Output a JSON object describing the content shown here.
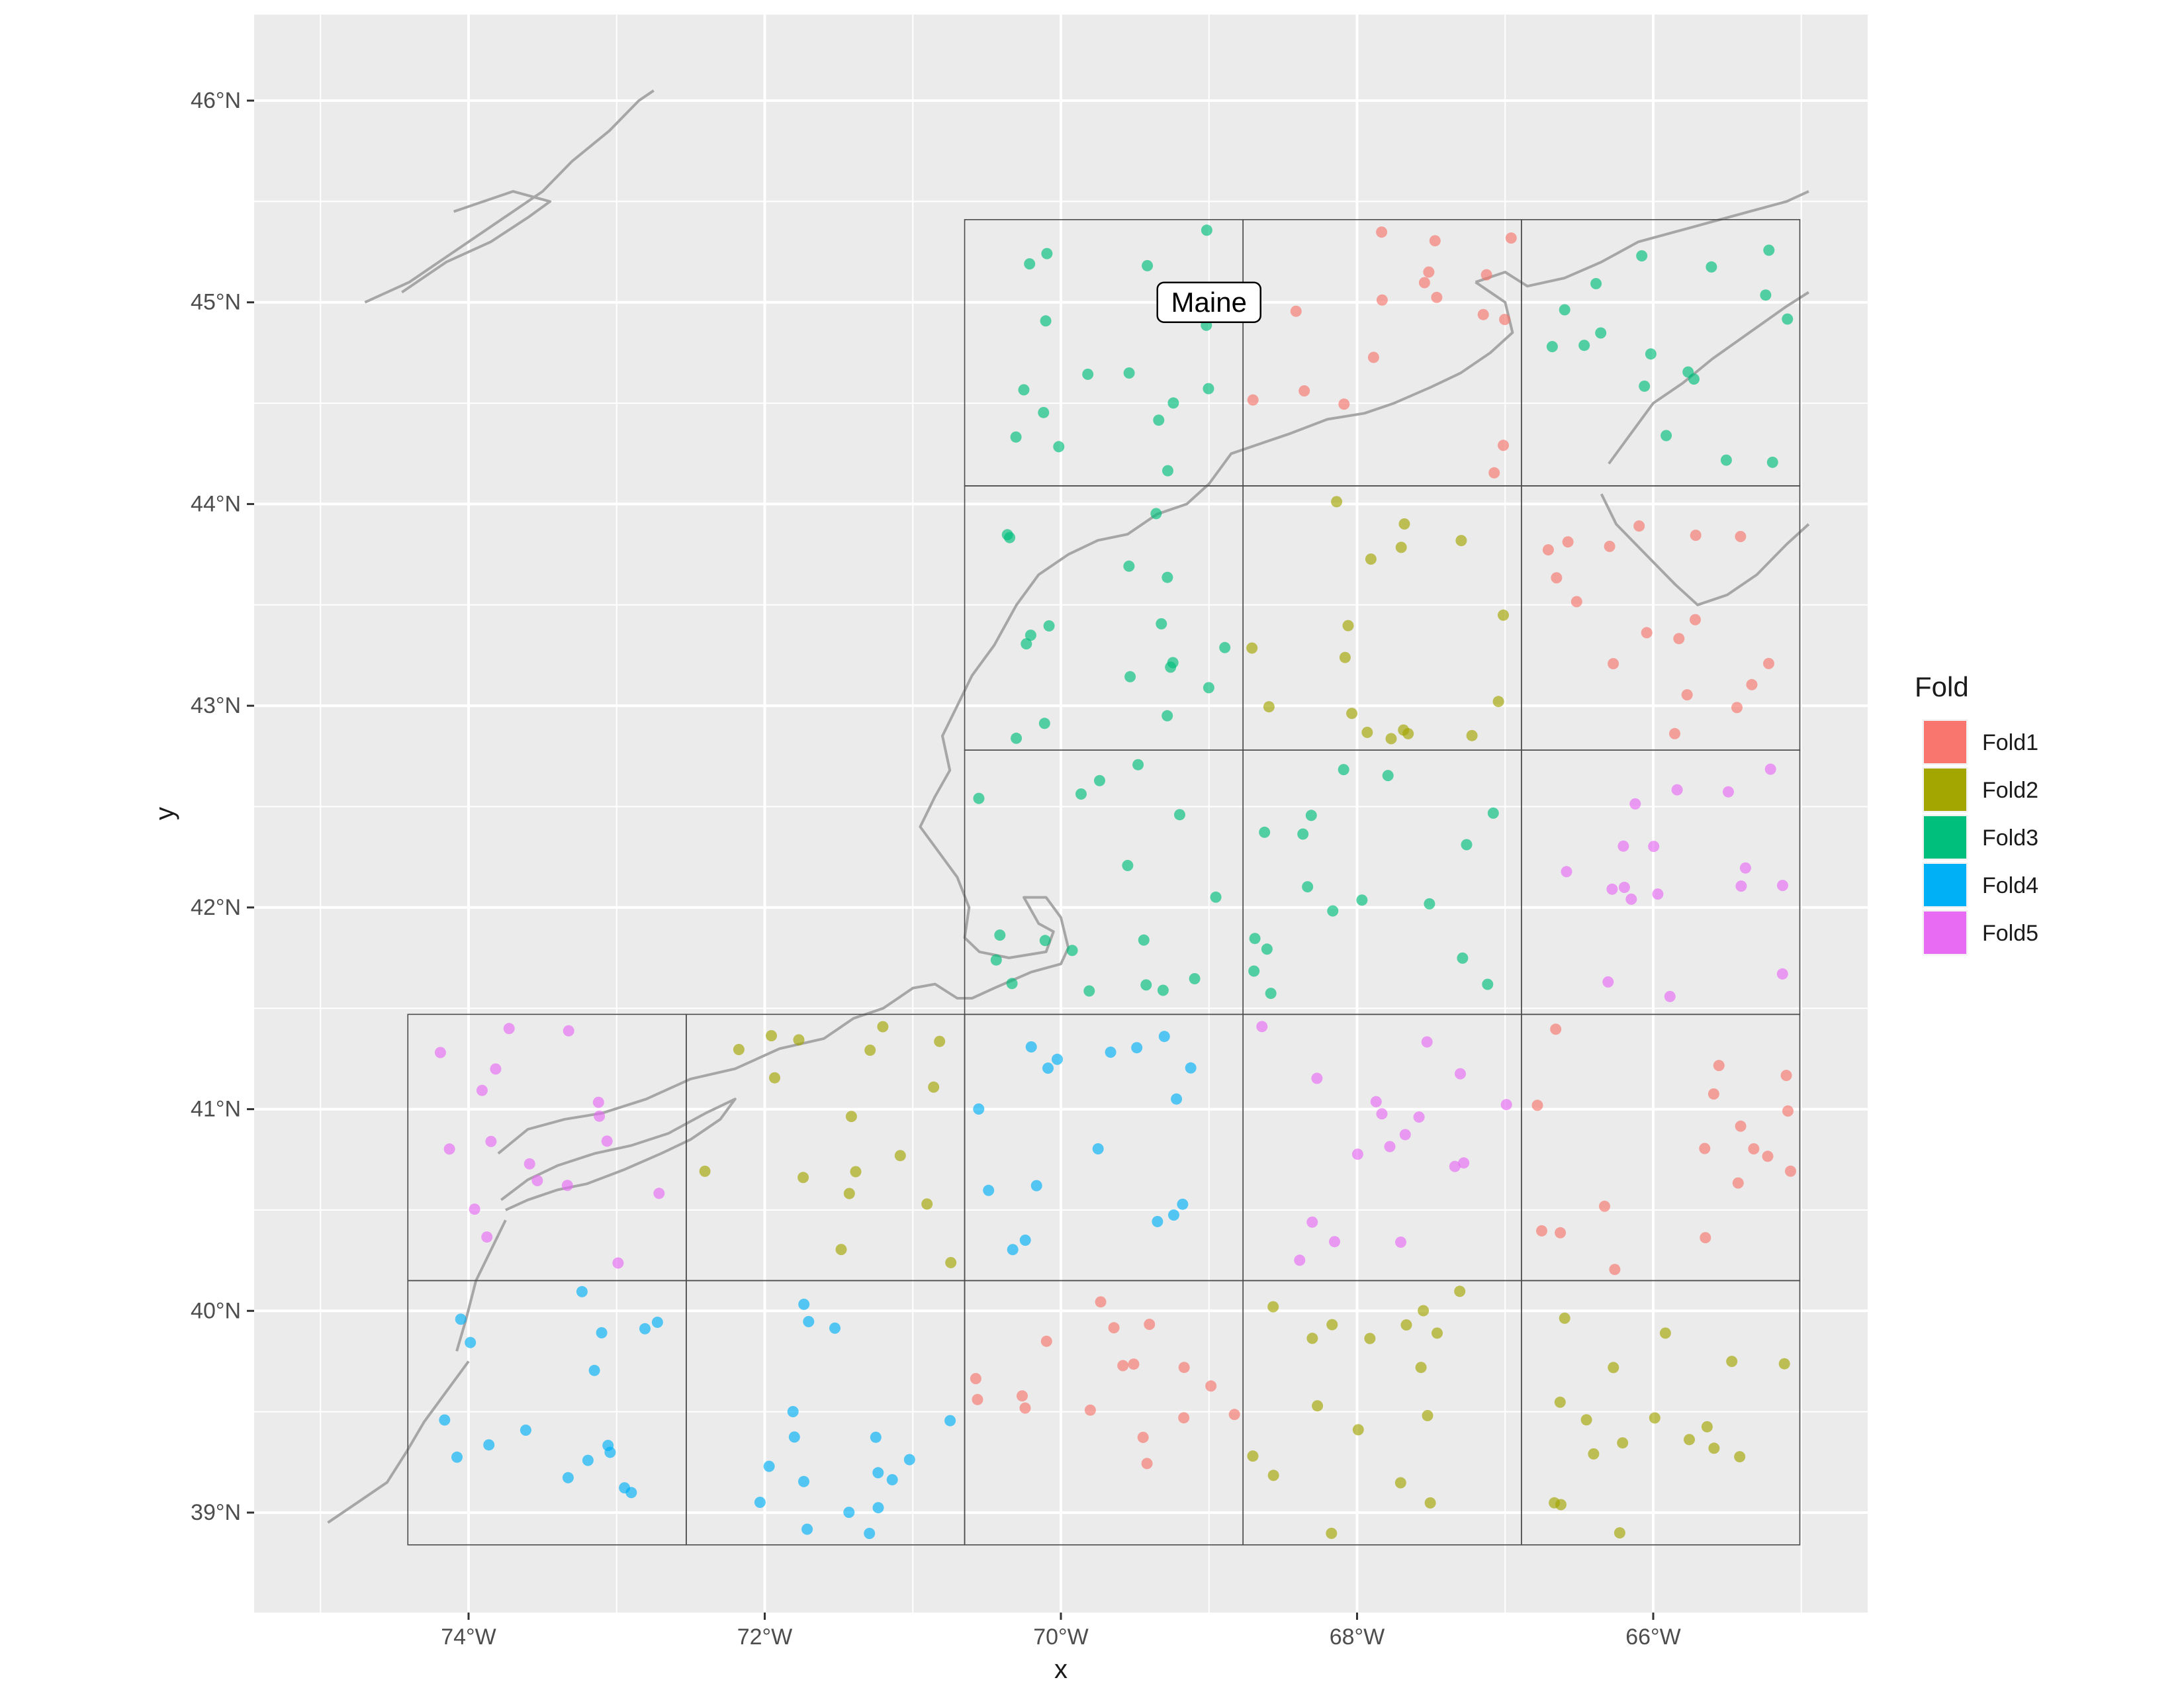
{
  "chart_data": {
    "type": "scatter",
    "map": "spatial cross-validation folds",
    "xlabel": "x",
    "ylabel": "y",
    "xlim": [
      -75.4,
      -64.5
    ],
    "ylim": [
      38.45,
      46.4
    ],
    "x_ticks": [
      -74,
      -72,
      -70,
      -68,
      -66
    ],
    "x_tick_labels": [
      "74°W",
      "72°W",
      "70°W",
      "68°W",
      "66°W"
    ],
    "y_ticks": [
      39,
      40,
      41,
      42,
      43,
      44,
      45,
      46
    ],
    "y_tick_labels": [
      "39°N",
      "40°N",
      "41°N",
      "42°N",
      "43°N",
      "44°N",
      "45°N",
      "46°N"
    ],
    "annotation": {
      "text": "Maine",
      "x": -69.0,
      "y": 45.0
    },
    "legend": {
      "title": "Fold",
      "position": "right"
    },
    "series": [
      {
        "name": "Fold1",
        "color": "#F8766D"
      },
      {
        "name": "Fold2",
        "color": "#A3A500"
      },
      {
        "name": "Fold3",
        "color": "#00BF7D"
      },
      {
        "name": "Fold4",
        "color": "#00B0F6"
      },
      {
        "name": "Fold5",
        "color": "#E76BF3"
      }
    ],
    "grid_x": [
      -74.41,
      -72.53,
      -70.65,
      -68.77,
      -66.89,
      -65.01
    ],
    "grid_y": [
      38.84,
      40.15,
      41.47,
      42.78,
      44.09,
      45.41
    ],
    "grid_blocks": [
      [
        0,
        0,
        4
      ],
      [
        1,
        0,
        4
      ],
      [
        2,
        0,
        1
      ],
      [
        3,
        0,
        2
      ],
      [
        4,
        0,
        2
      ],
      [
        0,
        1,
        5
      ],
      [
        1,
        1,
        2
      ],
      [
        2,
        1,
        4
      ],
      [
        3,
        1,
        5
      ],
      [
        4,
        1,
        1
      ],
      [
        2,
        2,
        3
      ],
      [
        3,
        2,
        3
      ],
      [
        4,
        2,
        5
      ],
      [
        2,
        3,
        3
      ],
      [
        3,
        3,
        2
      ],
      [
        4,
        3,
        1
      ],
      [
        2,
        4,
        3
      ],
      [
        3,
        4,
        1
      ],
      [
        4,
        4,
        3
      ]
    ],
    "points_per_block": 17,
    "coastline": [
      [
        [
          -74.0,
          39.75
        ],
        [
          -74.15,
          39.6
        ],
        [
          -74.3,
          39.45
        ],
        [
          -74.42,
          39.3
        ],
        [
          -74.55,
          39.15
        ],
        [
          -74.75,
          39.05
        ],
        [
          -74.95,
          38.95
        ]
      ],
      [
        [
          -73.75,
          40.45
        ],
        [
          -73.85,
          40.3
        ],
        [
          -73.95,
          40.15
        ],
        [
          -74.02,
          39.95
        ],
        [
          -74.08,
          39.8
        ]
      ],
      [
        [
          -73.75,
          40.5
        ],
        [
          -73.6,
          40.55
        ],
        [
          -73.4,
          40.6
        ],
        [
          -73.2,
          40.63
        ],
        [
          -72.95,
          40.7
        ],
        [
          -72.7,
          40.78
        ],
        [
          -72.5,
          40.85
        ],
        [
          -72.3,
          40.95
        ],
        [
          -72.2,
          41.05
        ],
        [
          -72.4,
          40.98
        ],
        [
          -72.65,
          40.88
        ],
        [
          -72.9,
          40.82
        ],
        [
          -73.15,
          40.78
        ],
        [
          -73.4,
          40.72
        ],
        [
          -73.6,
          40.65
        ],
        [
          -73.78,
          40.55
        ]
      ],
      [
        [
          -73.8,
          40.78
        ],
        [
          -73.6,
          40.9
        ],
        [
          -73.35,
          40.95
        ],
        [
          -73.1,
          40.98
        ],
        [
          -72.8,
          41.05
        ],
        [
          -72.5,
          41.15
        ],
        [
          -72.2,
          41.2
        ],
        [
          -71.9,
          41.3
        ],
        [
          -71.6,
          41.35
        ],
        [
          -71.4,
          41.45
        ],
        [
          -71.2,
          41.5
        ],
        [
          -71.1,
          41.55
        ],
        [
          -71.0,
          41.6
        ],
        [
          -70.85,
          41.62
        ],
        [
          -70.7,
          41.55
        ],
        [
          -70.6,
          41.55
        ],
        [
          -70.45,
          41.6
        ],
        [
          -70.2,
          41.68
        ],
        [
          -70.0,
          41.72
        ],
        [
          -69.95,
          41.8
        ],
        [
          -70.0,
          41.95
        ],
        [
          -70.1,
          42.05
        ],
        [
          -70.25,
          42.05
        ],
        [
          -70.15,
          41.92
        ],
        [
          -70.05,
          41.88
        ],
        [
          -70.1,
          41.78
        ],
        [
          -70.35,
          41.75
        ],
        [
          -70.55,
          41.78
        ],
        [
          -70.65,
          41.85
        ],
        [
          -70.62,
          42.0
        ],
        [
          -70.7,
          42.15
        ],
        [
          -70.85,
          42.3
        ],
        [
          -70.95,
          42.4
        ],
        [
          -70.85,
          42.55
        ],
        [
          -70.75,
          42.68
        ],
        [
          -70.8,
          42.85
        ],
        [
          -70.7,
          43.0
        ],
        [
          -70.6,
          43.15
        ],
        [
          -70.45,
          43.3
        ],
        [
          -70.3,
          43.5
        ],
        [
          -70.15,
          43.65
        ],
        [
          -69.95,
          43.75
        ],
        [
          -69.75,
          43.82
        ],
        [
          -69.55,
          43.85
        ],
        [
          -69.35,
          43.95
        ],
        [
          -69.15,
          44.0
        ],
        [
          -69.0,
          44.1
        ],
        [
          -68.85,
          44.25
        ],
        [
          -68.65,
          44.3
        ],
        [
          -68.45,
          44.35
        ],
        [
          -68.2,
          44.42
        ],
        [
          -67.95,
          44.45
        ],
        [
          -67.75,
          44.5
        ],
        [
          -67.5,
          44.58
        ],
        [
          -67.3,
          44.65
        ],
        [
          -67.1,
          44.75
        ],
        [
          -66.95,
          44.85
        ],
        [
          -67.0,
          45.0
        ],
        [
          -67.2,
          45.1
        ]
      ],
      [
        [
          -67.2,
          45.1
        ],
        [
          -67.0,
          45.15
        ],
        [
          -66.85,
          45.08
        ],
        [
          -66.6,
          45.12
        ],
        [
          -66.35,
          45.2
        ],
        [
          -66.1,
          45.3
        ],
        [
          -65.85,
          45.35
        ],
        [
          -65.6,
          45.4
        ],
        [
          -65.35,
          45.45
        ],
        [
          -65.1,
          45.5
        ],
        [
          -64.95,
          45.55
        ]
      ],
      [
        [
          -66.3,
          44.2
        ],
        [
          -66.15,
          44.35
        ],
        [
          -66.0,
          44.5
        ],
        [
          -65.8,
          44.6
        ],
        [
          -65.6,
          44.72
        ],
        [
          -65.35,
          44.85
        ],
        [
          -65.1,
          44.98
        ],
        [
          -64.95,
          45.05
        ]
      ],
      [
        [
          -66.35,
          44.05
        ],
        [
          -66.25,
          43.9
        ],
        [
          -66.05,
          43.75
        ],
        [
          -65.85,
          43.6
        ],
        [
          -65.7,
          43.5
        ],
        [
          -65.5,
          43.55
        ],
        [
          -65.3,
          43.65
        ],
        [
          -65.1,
          43.8
        ],
        [
          -64.95,
          43.9
        ]
      ],
      [
        [
          -74.7,
          45.0
        ],
        [
          -74.4,
          45.1
        ],
        [
          -74.1,
          45.25
        ],
        [
          -73.8,
          45.4
        ],
        [
          -73.5,
          45.55
        ],
        [
          -73.3,
          45.7
        ],
        [
          -73.05,
          45.85
        ],
        [
          -72.85,
          46.0
        ],
        [
          -72.75,
          46.05
        ]
      ],
      [
        [
          -74.45,
          45.05
        ],
        [
          -74.15,
          45.2
        ],
        [
          -73.85,
          45.3
        ],
        [
          -73.6,
          45.42
        ],
        [
          -73.45,
          45.5
        ],
        [
          -73.7,
          45.55
        ],
        [
          -73.9,
          45.5
        ],
        [
          -74.1,
          45.45
        ]
      ]
    ]
  }
}
